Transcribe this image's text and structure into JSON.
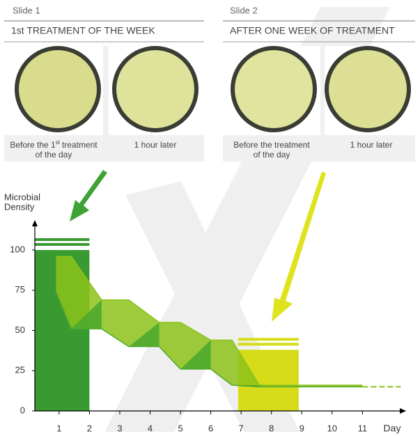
{
  "slides": [
    {
      "label": "Slide 1",
      "title": "1st TREATMENT OF THE WEEK",
      "captions": [
        {
          "text": "Before the 1",
          "sup": "st",
          "rest": "treatment",
          "line2": "of the day"
        },
        {
          "text": "1 hour later"
        }
      ]
    },
    {
      "label": "Slide 2",
      "title": "AFTER ONE WEEK OF TREATMENT",
      "captions": [
        {
          "text": "Before the treatment",
          "line2": "of the day"
        },
        {
          "text": "1 hour later"
        }
      ]
    }
  ],
  "chart_data": {
    "type": "line",
    "y_label": [
      "Microbial",
      "Density"
    ],
    "x_label": "Day",
    "x": [
      0.9,
      1.4,
      2.4,
      3.3,
      4.3,
      5.0,
      6.0,
      6.7,
      7.6,
      11
    ],
    "series": [
      {
        "color": "#8cc21a",
        "values": [
          96,
          96,
          69,
          69,
          55,
          55,
          44,
          44,
          16,
          16
        ]
      },
      {
        "color": "#4fa82c",
        "values": [
          74,
          51,
          51,
          40,
          40,
          26,
          26,
          16,
          15,
          15
        ]
      }
    ],
    "bars": [
      {
        "x": [
          0.2,
          2.0
        ],
        "value": 100,
        "color": "#3a9a32"
      },
      {
        "x": [
          6.9,
          8.9
        ],
        "value": 38,
        "color": "#d6dc1a"
      }
    ],
    "xlim": [
      0.2,
      12.3
    ],
    "ylim": [
      0,
      116
    ],
    "xticks": [
      1,
      2,
      3,
      4,
      5,
      6,
      7,
      8,
      9,
      10,
      11
    ],
    "yticks": [
      0,
      25,
      50,
      75,
      100
    ]
  }
}
